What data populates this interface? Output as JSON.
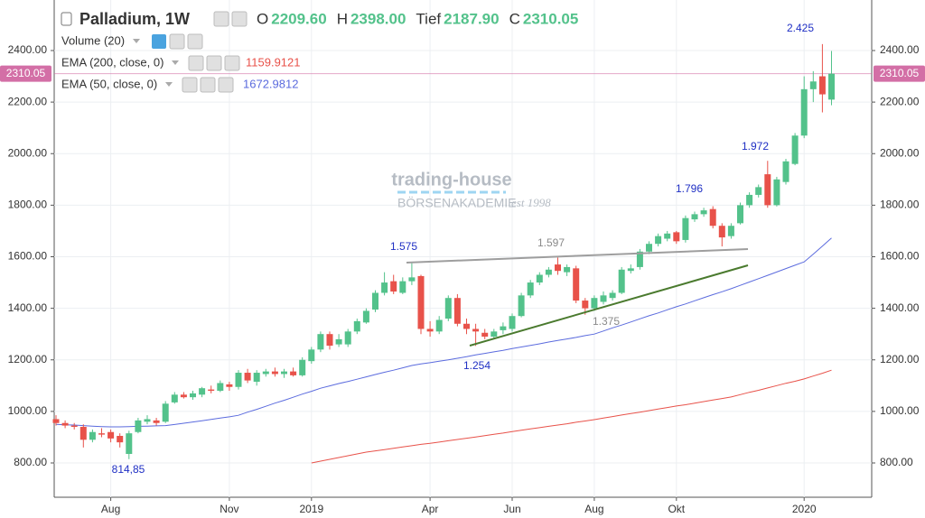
{
  "chart_data": {
    "type": "candlestick",
    "title": "Palladium, 1W",
    "ohlc_legend": [
      {
        "label": "O",
        "value": "2209.60"
      },
      {
        "label": "H",
        "value": "2398.00"
      },
      {
        "label": "Tief",
        "value": "2187.90"
      },
      {
        "label": "C",
        "value": "2310.05"
      }
    ],
    "indicators": [
      {
        "name": "Volume (20)"
      },
      {
        "name": "EMA (200, close, 0)",
        "value_label": "1159.9121"
      },
      {
        "name": "EMA (50, close, 0)",
        "value_label": "1672.9812"
      }
    ],
    "categories": [
      null,
      null,
      null,
      null,
      null,
      null,
      "Aug",
      null,
      null,
      null,
      null,
      null,
      null,
      null,
      null,
      null,
      null,
      null,
      null,
      "Nov",
      null,
      null,
      null,
      null,
      null,
      null,
      null,
      null,
      "2019",
      null,
      null,
      null,
      null,
      null,
      null,
      null,
      null,
      null,
      null,
      null,
      null,
      "Apr",
      null,
      null,
      null,
      null,
      null,
      null,
      null,
      null,
      "Jun",
      null,
      null,
      null,
      null,
      null,
      null,
      null,
      null,
      "Aug",
      null,
      null,
      null,
      null,
      null,
      null,
      null,
      null,
      "Okt",
      null,
      null,
      null,
      null,
      null,
      null,
      null,
      null,
      null,
      null,
      null,
      null,
      null,
      "2020",
      null,
      null,
      null
    ],
    "up_color": "#53c28b",
    "down_color": "#e8524a",
    "open": [
      970,
      955,
      945,
      940,
      890,
      915,
      920,
      905,
      835,
      920,
      960,
      965,
      960,
      1035,
      1065,
      1055,
      1065,
      1085,
      1080,
      1105,
      1095,
      1150,
      1115,
      1145,
      1155,
      1145,
      1155,
      1140,
      1195,
      1240,
      1300,
      1260,
      1260,
      1310,
      1345,
      1395,
      1460,
      1505,
      1460,
      1505,
      1525,
      1320,
      1310,
      1360,
      1440,
      1340,
      1320,
      1305,
      1290,
      1315,
      1320,
      1370,
      1450,
      1500,
      1530,
      1570,
      1540,
      1555,
      1430,
      1400,
      1425,
      1440,
      1460,
      1545,
      1560,
      1620,
      1650,
      1670,
      1695,
      1665,
      1745,
      1765,
      1785,
      1720,
      1680,
      1730,
      1800,
      1840,
      1920,
      1800,
      1890,
      1960,
      2070,
      2250,
      2300,
      2209.6
    ],
    "high": [
      985,
      965,
      955,
      950,
      930,
      935,
      930,
      915,
      925,
      975,
      985,
      975,
      1040,
      1075,
      1075,
      1080,
      1095,
      1100,
      1120,
      1115,
      1160,
      1165,
      1160,
      1165,
      1170,
      1165,
      1170,
      1210,
      1250,
      1310,
      1310,
      1300,
      1320,
      1360,
      1400,
      1470,
      1540,
      1530,
      1520,
      1575,
      1530,
      1350,
      1370,
      1450,
      1455,
      1360,
      1340,
      1320,
      1320,
      1345,
      1380,
      1460,
      1510,
      1540,
      1560,
      1597,
      1570,
      1565,
      1440,
      1450,
      1465,
      1470,
      1560,
      1570,
      1630,
      1660,
      1690,
      1700,
      1700,
      1760,
      1775,
      1790,
      1796,
      1730,
      1730,
      1810,
      1850,
      1880,
      1972,
      1910,
      1980,
      2080,
      2300,
      2320,
      2425,
      2398
    ],
    "low": [
      945,
      935,
      930,
      860,
      880,
      900,
      880,
      860,
      814.85,
      915,
      950,
      945,
      955,
      1030,
      1050,
      1045,
      1055,
      1070,
      1075,
      1080,
      1085,
      1110,
      1100,
      1135,
      1135,
      1130,
      1135,
      1135,
      1185,
      1230,
      1240,
      1250,
      1250,
      1300,
      1340,
      1385,
      1450,
      1455,
      1455,
      1490,
      1300,
      1290,
      1300,
      1350,
      1330,
      1300,
      1254,
      1280,
      1285,
      1300,
      1310,
      1365,
      1440,
      1490,
      1520,
      1530,
      1525,
      1420,
      1375,
      1390,
      1415,
      1430,
      1455,
      1535,
      1550,
      1610,
      1640,
      1660,
      1650,
      1655,
      1735,
      1755,
      1710,
      1640,
      1670,
      1725,
      1790,
      1830,
      1790,
      1795,
      1880,
      1955,
      2060,
      2200,
      2160,
      2187.9
    ],
    "close": [
      955,
      945,
      940,
      890,
      920,
      910,
      895,
      880,
      915,
      965,
      970,
      955,
      1030,
      1065,
      1055,
      1070,
      1090,
      1080,
      1110,
      1095,
      1150,
      1120,
      1150,
      1155,
      1145,
      1155,
      1140,
      1200,
      1240,
      1300,
      1255,
      1280,
      1310,
      1350,
      1390,
      1460,
      1500,
      1465,
      1505,
      1520,
      1320,
      1310,
      1355,
      1440,
      1340,
      1320,
      1310,
      1290,
      1310,
      1330,
      1370,
      1450,
      1500,
      1530,
      1550,
      1545,
      1560,
      1430,
      1400,
      1440,
      1450,
      1460,
      1550,
      1555,
      1620,
      1650,
      1680,
      1690,
      1660,
      1750,
      1765,
      1780,
      1720,
      1675,
      1720,
      1800,
      1840,
      1870,
      1800,
      1900,
      1970,
      2070,
      2250,
      2280,
      2230,
      2310.05
    ],
    "series": [
      {
        "name": "EMA (200, close, 0)",
        "color": "#e8524a",
        "values": [
          null,
          null,
          null,
          null,
          null,
          null,
          null,
          null,
          null,
          null,
          null,
          null,
          null,
          null,
          null,
          null,
          null,
          null,
          null,
          null,
          null,
          null,
          null,
          null,
          null,
          null,
          null,
          null,
          800,
          807,
          814,
          821,
          828,
          835,
          842,
          847,
          852,
          857,
          862,
          867,
          872,
          876,
          881,
          886,
          891,
          896,
          901,
          906,
          911,
          916,
          922,
          927,
          932,
          937,
          942,
          947,
          952,
          958,
          963,
          968,
          974,
          980,
          986,
          992,
          997,
          1003,
          1009,
          1015,
          1021,
          1026,
          1032,
          1038,
          1044,
          1050,
          1056,
          1065,
          1074,
          1082,
          1091,
          1100,
          1109,
          1117,
          1126,
          1137,
          1148,
          1159.9121
        ]
      },
      {
        "name": "EMA (50, close, 0)",
        "color": "#5b6bde",
        "values": [
          950,
          948,
          947,
          945,
          943,
          941,
          940,
          940,
          941,
          942,
          943,
          944,
          945,
          949,
          954,
          959,
          964,
          969,
          974,
          979,
          985,
          997,
          1008,
          1020,
          1032,
          1043,
          1055,
          1067,
          1078,
          1090,
          1099,
          1108,
          1116,
          1125,
          1134,
          1143,
          1152,
          1160,
          1169,
          1178,
          1184,
          1189,
          1195,
          1200,
          1206,
          1212,
          1219,
          1225,
          1231,
          1237,
          1244,
          1250,
          1256,
          1262,
          1269,
          1275,
          1281,
          1287,
          1294,
          1300,
          1312,
          1324,
          1335,
          1347,
          1359,
          1371,
          1382,
          1394,
          1406,
          1417,
          1429,
          1441,
          1453,
          1464,
          1476,
          1489,
          1502,
          1515,
          1528,
          1541,
          1554,
          1567,
          1580,
          1610,
          1641,
          1672.9812
        ]
      }
    ],
    "last_price": 2310.05,
    "last_price_color": "#d36fa6",
    "ylim": [
      667,
      2596
    ],
    "yticks": [
      {
        "value": 800,
        "label": "800.00"
      },
      {
        "value": 1000,
        "label": "1000.00"
      },
      {
        "value": 1200,
        "label": "1200.00"
      },
      {
        "value": 1400,
        "label": "1400.00"
      },
      {
        "value": 1600,
        "label": "1600.00"
      },
      {
        "value": 1800,
        "label": "1800.00"
      },
      {
        "value": 2000,
        "label": "2000.00"
      },
      {
        "value": 2200,
        "label": "2200.00"
      },
      {
        "value": 2400,
        "label": "2400.00"
      }
    ],
    "grid": true,
    "annotations": [
      {
        "text": "814,85"
      },
      {
        "text": "1.575"
      },
      {
        "text": "1.254"
      },
      {
        "text": "1.597"
      },
      {
        "text": "1.375"
      },
      {
        "text": "1.796"
      },
      {
        "text": "1.972"
      },
      {
        "text": "2.425"
      }
    ],
    "watermark": {
      "title": "trading-house",
      "subtitle": "BÖRSENAKADEMIE",
      "tagline": "est 1998"
    }
  }
}
